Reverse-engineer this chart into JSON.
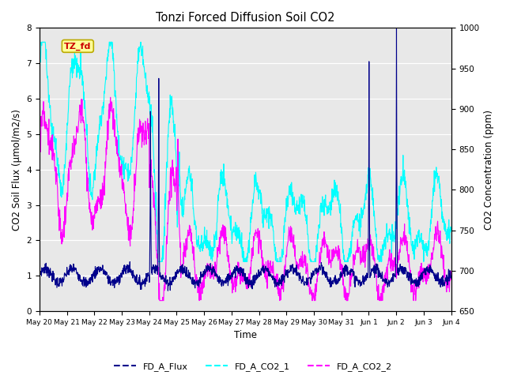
{
  "title": "Tonzi Forced Diffusion Soil CO2",
  "xlabel": "Time",
  "ylabel_left": "CO2 Soil Flux (μmol/m2/s)",
  "ylabel_right": "CO2 Concentration (ppm)",
  "ylim_left": [
    0.0,
    8.0
  ],
  "ylim_right": [
    650,
    1000
  ],
  "yticks_left": [
    0.0,
    1.0,
    2.0,
    3.0,
    4.0,
    5.0,
    6.0,
    7.0,
    8.0
  ],
  "yticks_right": [
    650,
    700,
    750,
    800,
    850,
    900,
    950,
    1000
  ],
  "xtick_labels": [
    "May 20",
    "May 21",
    "May 22",
    "May 23",
    "May 24",
    "May 25",
    "May 26",
    "May 27",
    "May 28",
    "May 29",
    "May 30",
    "May 31",
    "Jun 1",
    "Jun 2",
    "Jun 3",
    "Jun 4"
  ],
  "color_flux": "#00008B",
  "color_co2_1": "#00FFFF",
  "color_co2_2": "#FF00FF",
  "legend_labels": [
    "FD_A_Flux",
    "FD_A_CO2_1",
    "FD_A_CO2_2"
  ],
  "tag_text": "TZ_fd",
  "tag_bg": "#FFFF99",
  "tag_border": "#BBAA00",
  "tag_text_color": "#CC0000",
  "background_color": "#E8E8E8",
  "n_points": 1440
}
